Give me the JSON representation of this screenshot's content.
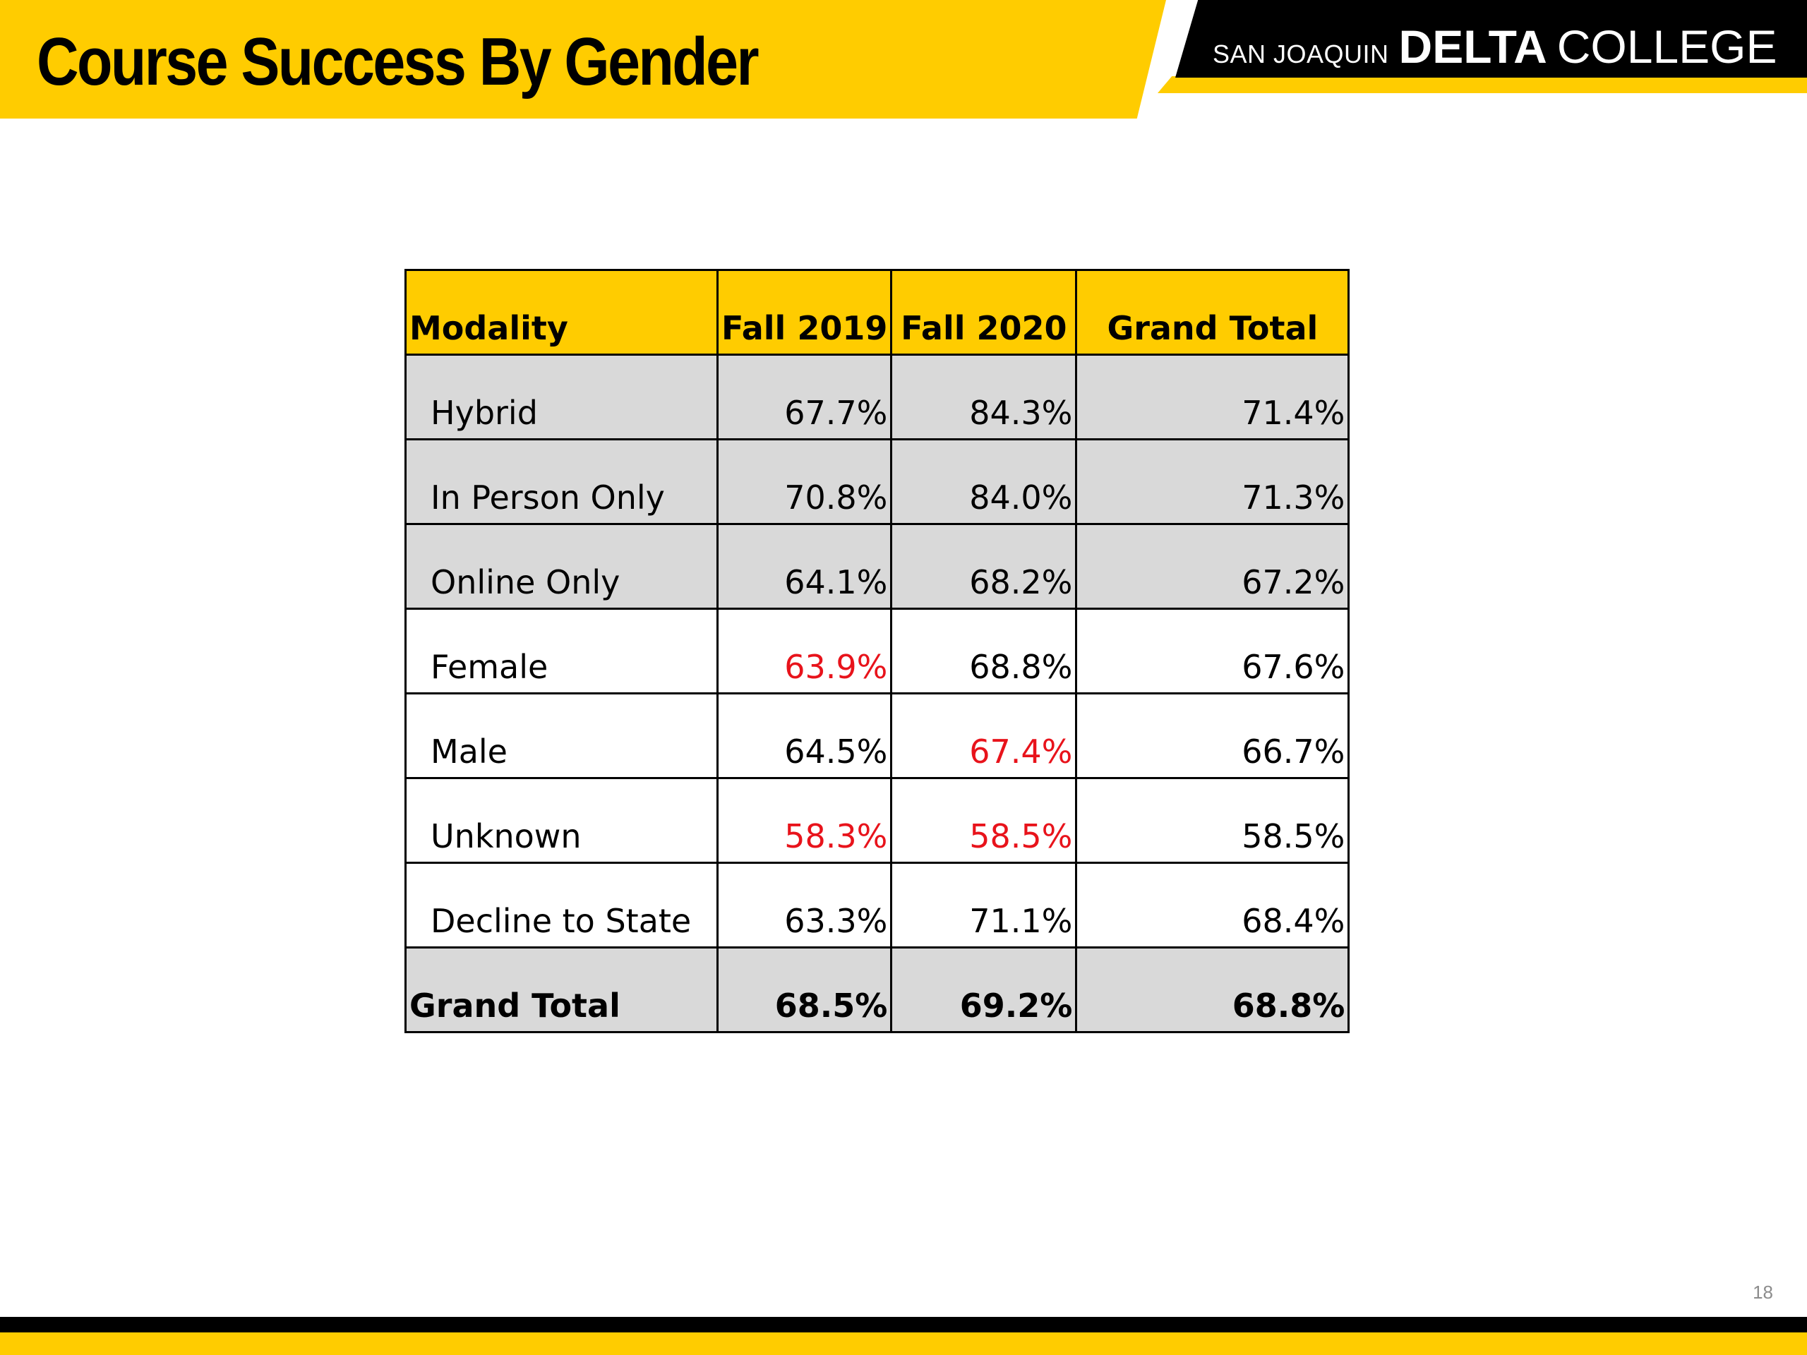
{
  "slide": {
    "title": "Course Success By Gender",
    "page_number": "18"
  },
  "logo": {
    "small": "SAN JOAQUIN",
    "bold": "DELTA",
    "regular": "COLLEGE"
  },
  "colors": {
    "accent_yellow": "#FFCC00",
    "row_grey": "#D9D9D9",
    "highlight_red": "#E8131B"
  },
  "table": {
    "headers": [
      "Modality",
      "Fall 2019",
      "Fall 2020",
      "Grand Total"
    ],
    "rows": [
      {
        "label": "Hybrid",
        "values": [
          "67.7%",
          "84.3%",
          "71.4%"
        ]
      },
      {
        "label": "In Person Only",
        "values": [
          "70.8%",
          "84.0%",
          "71.3%"
        ]
      },
      {
        "label": "Online Only",
        "values": [
          "64.1%",
          "68.2%",
          "67.2%"
        ]
      },
      {
        "label": "Female",
        "values": [
          "63.9%",
          "68.8%",
          "67.6%"
        ]
      },
      {
        "label": "Male",
        "values": [
          "64.5%",
          "67.4%",
          "66.7%"
        ]
      },
      {
        "label": "Unknown",
        "values": [
          "58.3%",
          "58.5%",
          "58.5%"
        ]
      },
      {
        "label": "Decline to State",
        "values": [
          "63.3%",
          "71.1%",
          "68.4%"
        ]
      }
    ],
    "total": {
      "label": "Grand Total",
      "values": [
        "68.5%",
        "69.2%",
        "68.8%"
      ]
    }
  }
}
